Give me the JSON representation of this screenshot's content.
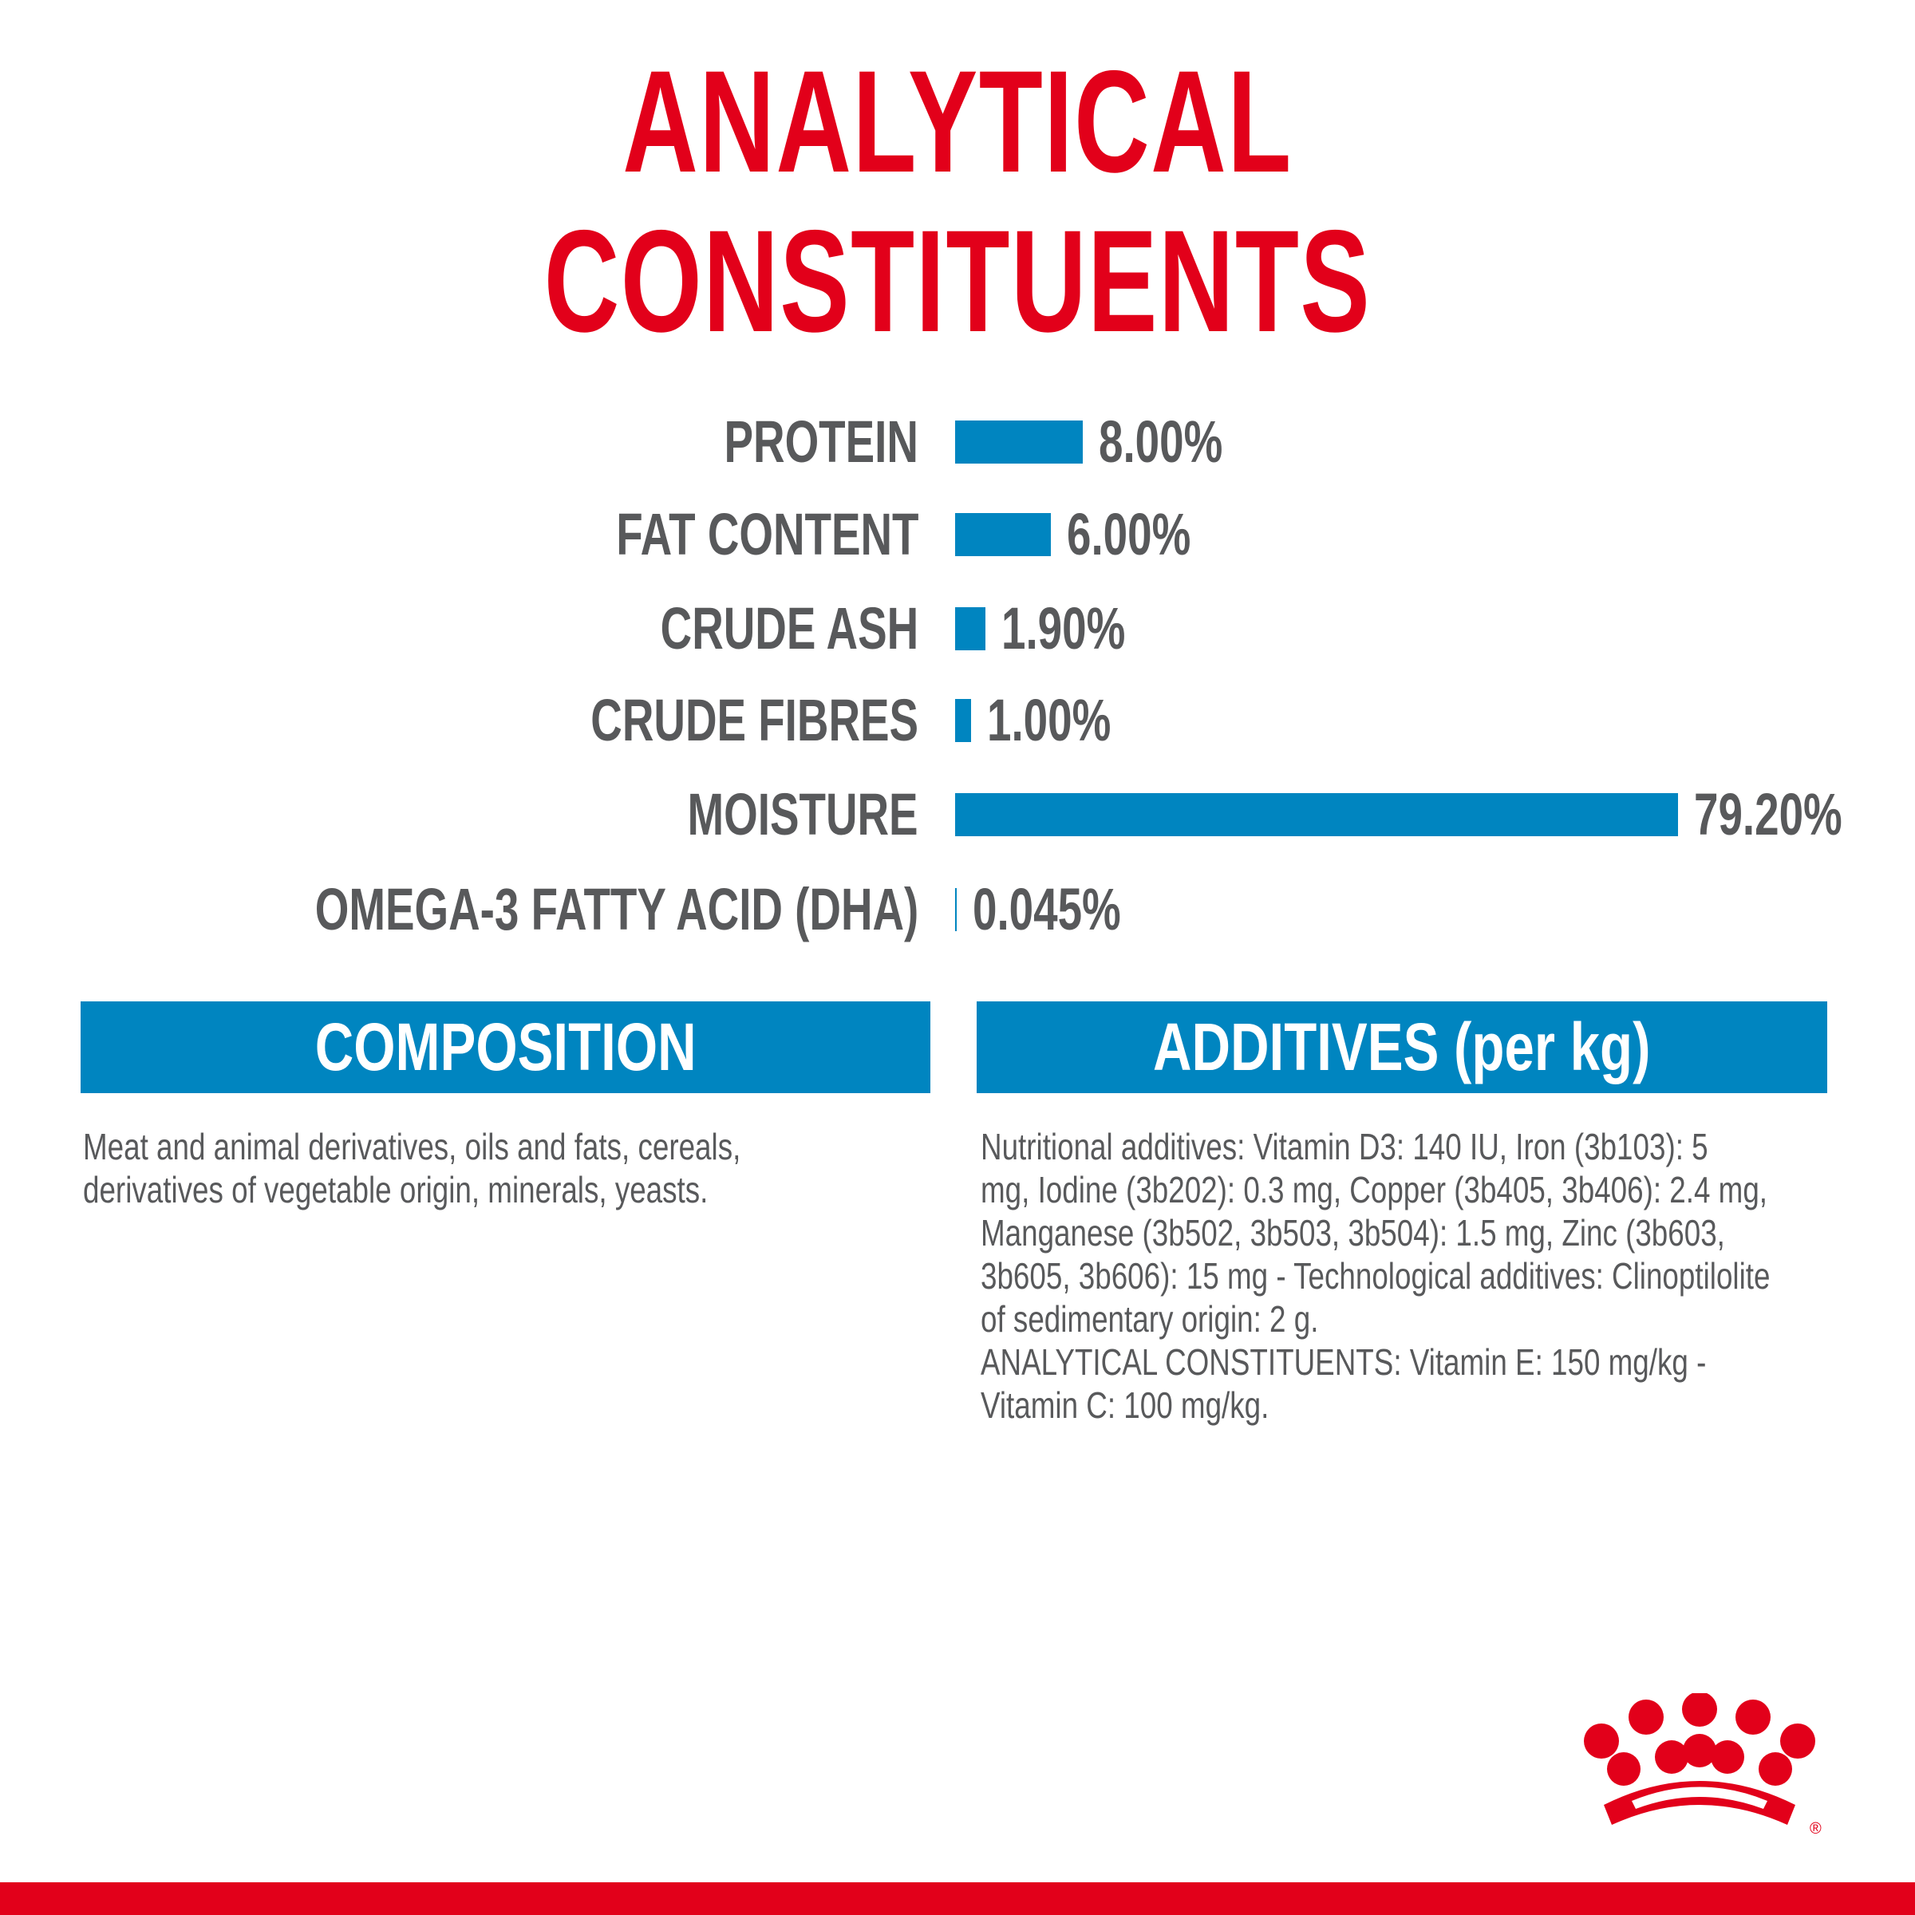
{
  "title": "ANALYTICAL CONSTITUENTS",
  "colors": {
    "brand_red": "#e2001a",
    "bar_blue": "#0085c0",
    "text_gray": "#58595b"
  },
  "chart_data": {
    "type": "bar",
    "orientation": "horizontal",
    "categories": [
      "PROTEIN",
      "FAT CONTENT",
      "CRUDE ASH",
      "CRUDE FIBRES",
      "MOISTURE",
      "OMEGA-3 FATTY ACID (DHA)"
    ],
    "values": [
      8.0,
      6.0,
      1.9,
      1.0,
      79.2,
      0.045
    ],
    "labels": [
      "8.00%",
      "6.00%",
      "1.90%",
      "1.00%",
      "79.20%",
      "0.045%"
    ],
    "unit": "%",
    "grid": false
  },
  "composition": {
    "header": "COMPOSITION",
    "lines": [
      "Meat and animal derivatives, oils and fats, cereals,",
      "derivatives of vegetable origin, minerals, yeasts."
    ]
  },
  "additives": {
    "header": "ADDITIVES (per kg)",
    "lines": [
      "Nutritional additives: Vitamin D3: 140 IU, Iron (3b103): 5",
      "mg, Iodine (3b202): 0.3 mg, Copper (3b405, 3b406): 2.4 mg,",
      "Manganese (3b502, 3b503, 3b504): 1.5 mg, Zinc (3b603,",
      "3b605, 3b606): 15 mg - Technological additives: Clinoptilolite",
      "of sedimentary origin: 2 g.",
      "ANALYTICAL CONSTITUENTS: Vitamin E: 150 mg/kg -",
      "Vitamin C: 100 mg/kg."
    ]
  },
  "logo": {
    "name": "royal-canin-crown-logo",
    "mark": "®"
  }
}
